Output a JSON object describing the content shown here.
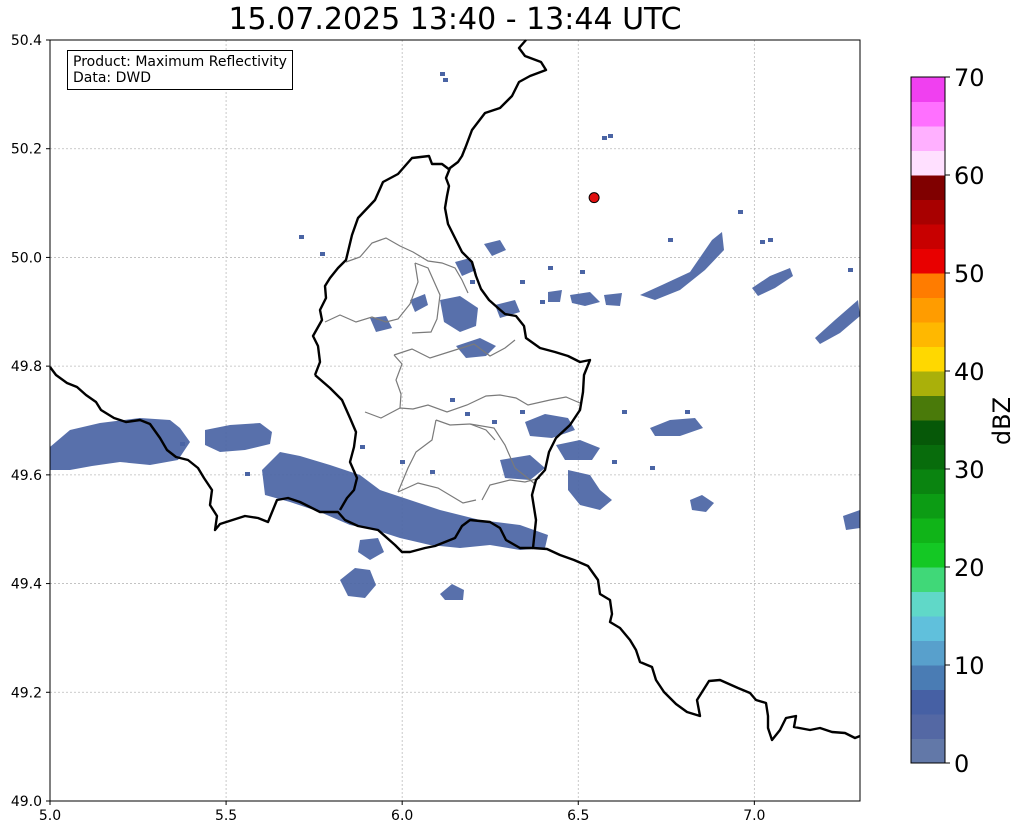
{
  "title": "15.07.2025 13:40 - 13:44 UTC",
  "info": {
    "product_line": "Product: Maximum Reflectivity",
    "data_line": "Data: DWD"
  },
  "map": {
    "x_ticks": [
      "5.0",
      "5.5",
      "6.0",
      "6.5",
      "7.0"
    ],
    "y_ticks": [
      "49.0",
      "49.2",
      "49.4",
      "49.6",
      "49.8",
      "50.0",
      "50.2",
      "50.4"
    ],
    "lon_range": [
      5.0,
      7.3
    ],
    "lat_range": [
      49.0,
      50.4
    ],
    "marker": {
      "lon": 6.545,
      "lat": 50.11,
      "color": "#e01010"
    },
    "echo_color": "#4a64a4"
  },
  "colorbar": {
    "label": "dBZ",
    "tick_labels": [
      "0",
      "10",
      "20",
      "30",
      "40",
      "50",
      "60",
      "70"
    ],
    "range": [
      0,
      70
    ],
    "colors": [
      "#6278a8",
      "#5468a4",
      "#4660a4",
      "#4a7cb4",
      "#58a0cc",
      "#60c0dc",
      "#60d8c8",
      "#40d878",
      "#14c824",
      "#10b418",
      "#0c9c14",
      "#0a8410",
      "#086c0c",
      "#065808",
      "#4a7a0a",
      "#aab00a",
      "#ffd800",
      "#ffb800",
      "#ff9c00",
      "#ff7c00",
      "#e80000",
      "#c80000",
      "#a80000",
      "#800000",
      "#ffe0ff",
      "#ffb0ff",
      "#ff70ff",
      "#f040f0"
    ]
  }
}
